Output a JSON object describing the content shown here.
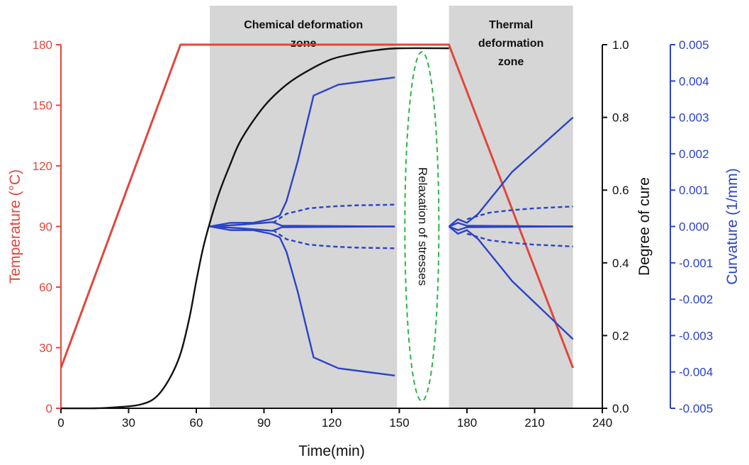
{
  "chart_data": {
    "type": "line",
    "xlabel": "Time(min)",
    "xlim": [
      0,
      240
    ],
    "xticks": [
      "0",
      "30",
      "60",
      "90",
      "120",
      "150",
      "180",
      "210",
      "240"
    ],
    "y_left": {
      "label": "Temperature (°C)",
      "lim": [
        0,
        180
      ],
      "ticks": [
        "0",
        "30",
        "60",
        "90",
        "120",
        "150",
        "180"
      ],
      "color": "#e0473c"
    },
    "y_right1": {
      "label": "Degree of cure",
      "lim": [
        0.0,
        1.0
      ],
      "ticks": [
        "0.0",
        "0.2",
        "0.4",
        "0.6",
        "0.8",
        "1.0"
      ],
      "color": "#111111"
    },
    "y_right2": {
      "label": "Curvature (1/mm)",
      "lim": [
        -0.005,
        0.005
      ],
      "ticks": [
        "-0.005",
        "-0.004",
        "-0.003",
        "-0.002",
        "-0.001",
        "0.000",
        "0.001",
        "0.002",
        "0.003",
        "0.004",
        "0.005"
      ],
      "color": "#2a43c8"
    },
    "zones": [
      {
        "x_start": 66,
        "x_end": 149,
        "label_line1": "Chemical deformation",
        "label_line2": "zone"
      },
      {
        "x_start": 172,
        "x_end": 227,
        "label_line1": "Thermal",
        "label_line2": "deformation",
        "label_line3": "zone"
      }
    ],
    "annotation": {
      "text": "Relaxation of stresses",
      "x_center": 160,
      "cure_range": [
        0.02,
        0.98
      ],
      "color": "#2db34a"
    },
    "series": [
      {
        "axis": "temperature",
        "color": "#e0473c",
        "style": "solid",
        "x": [
          0,
          53,
          172,
          227
        ],
        "y": [
          20,
          180,
          180,
          20
        ]
      },
      {
        "axis": "cure",
        "color": "#111111",
        "style": "solid",
        "x": [
          0,
          15,
          25,
          35,
          42,
          48,
          53,
          57,
          60,
          63,
          66,
          70,
          75,
          80,
          90,
          100,
          110,
          120,
          130,
          140,
          150,
          172
        ],
        "y": [
          0.0,
          0.0,
          0.003,
          0.01,
          0.03,
          0.08,
          0.15,
          0.25,
          0.35,
          0.44,
          0.51,
          0.59,
          0.67,
          0.74,
          0.83,
          0.89,
          0.93,
          0.96,
          0.975,
          0.985,
          0.99,
          0.99
        ]
      },
      {
        "axis": "curvature",
        "color": "#2a43c8",
        "style": "solid",
        "x": [
          66,
          75,
          85,
          93,
          97,
          100,
          105,
          112,
          123,
          148
        ],
        "y": [
          0.0,
          0.0001,
          0.0001,
          0.0002,
          0.0003,
          0.0007,
          0.0018,
          0.0036,
          0.0039,
          0.0041
        ]
      },
      {
        "axis": "curvature",
        "color": "#2a43c8",
        "style": "solid",
        "x": [
          66,
          75,
          85,
          93,
          97,
          100,
          105,
          112,
          123,
          148
        ],
        "y": [
          0.0,
          -0.0001,
          -0.0001,
          -0.0002,
          -0.0003,
          -0.0007,
          -0.0018,
          -0.0036,
          -0.0039,
          -0.0041
        ]
      },
      {
        "axis": "curvature",
        "color": "#2a43c8",
        "style": "solid",
        "x": [
          66,
          80,
          90,
          94,
          98,
          148
        ],
        "y": [
          0.0,
          5e-05,
          0.0001,
          0.00012,
          2e-05,
          0.0
        ]
      },
      {
        "axis": "curvature",
        "color": "#2a43c8",
        "style": "solid",
        "x": [
          66,
          80,
          90,
          94,
          98,
          148
        ],
        "y": [
          0.0,
          -5e-05,
          -0.0001,
          -0.00012,
          -2e-05,
          0.0
        ]
      },
      {
        "axis": "curvature",
        "color": "#2a43c8",
        "style": "dashed",
        "x": [
          94,
          100,
          110,
          120,
          130,
          148
        ],
        "y": [
          0.0001,
          0.00035,
          0.0005,
          0.00055,
          0.00058,
          0.0006
        ]
      },
      {
        "axis": "curvature",
        "color": "#2a43c8",
        "style": "dashed",
        "x": [
          94,
          100,
          110,
          120,
          130,
          148
        ],
        "y": [
          -0.0001,
          -0.00035,
          -0.0005,
          -0.00055,
          -0.00058,
          -0.0006
        ]
      },
      {
        "axis": "curvature",
        "color": "#2a43c8",
        "style": "solid",
        "x": [
          172,
          176,
          180,
          185,
          200,
          227
        ],
        "y": [
          0.0,
          0.0002,
          0.0001,
          0.00035,
          0.0015,
          0.003
        ]
      },
      {
        "axis": "curvature",
        "color": "#2a43c8",
        "style": "solid",
        "x": [
          172,
          176,
          180,
          185,
          200,
          227
        ],
        "y": [
          0.0,
          -0.0002,
          -0.0001,
          -0.00035,
          -0.0015,
          -0.0031
        ]
      },
      {
        "axis": "curvature",
        "color": "#2a43c8",
        "style": "solid",
        "x": [
          172,
          176,
          180,
          227
        ],
        "y": [
          0.0,
          0.0001,
          2e-05,
          0.0
        ]
      },
      {
        "axis": "curvature",
        "color": "#2a43c8",
        "style": "solid",
        "x": [
          172,
          176,
          180,
          227
        ],
        "y": [
          0.0,
          -0.0001,
          -2e-05,
          0.0
        ]
      },
      {
        "axis": "curvature",
        "color": "#2a43c8",
        "style": "dashed",
        "x": [
          180,
          190,
          200,
          210,
          227
        ],
        "y": [
          0.0002,
          0.00038,
          0.00045,
          0.0005,
          0.00055
        ]
      },
      {
        "axis": "curvature",
        "color": "#2a43c8",
        "style": "dashed",
        "x": [
          180,
          190,
          200,
          210,
          227
        ],
        "y": [
          -0.0002,
          -0.00038,
          -0.00045,
          -0.0005,
          -0.00055
        ]
      }
    ]
  }
}
